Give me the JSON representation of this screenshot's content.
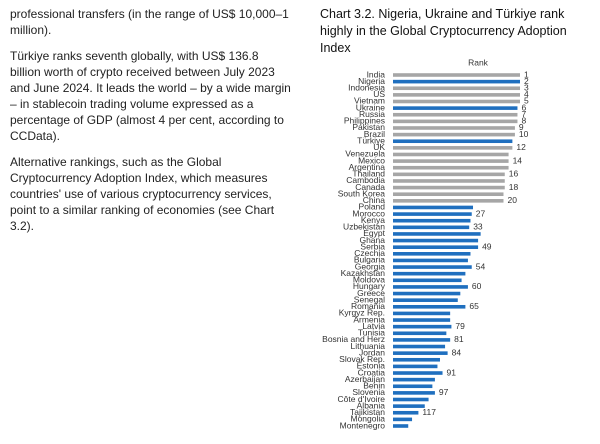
{
  "paragraphs": [
    "professional transfers (in the range of US$ 10,000–1 million).",
    "Türkiye ranks seventh globally, with US$ 136.8 billion worth of crypto received between July 2023 and June 2024. It leads the world – by a wide margin – in stablecoin trading volume expressed as a percentage of GDP (almost 4 per cent, according to CCData).",
    "Alternative rankings, such as the Global Cryptocurrency Adoption Index, which measures countries' use of various cryptocurrency services, point to a similar ranking of economies (see Chart 3.2)."
  ],
  "chart_data": {
    "type": "bar",
    "orientation": "horizontal",
    "title": "Chart 3.2. Nigeria, Ukraine and Türkiye rank highly in the Global Cryptocurrency Adoption Index",
    "x_label": "Rank",
    "categories": [
      "India",
      "Nigeria",
      "Indonesia",
      "US",
      "Vietnam",
      "Ukraine",
      "Russia",
      "Philippines",
      "Pakistan",
      "Brazil",
      "Türkiye",
      "UK",
      "Venezuela",
      "Mexico",
      "Argentina",
      "Thailand",
      "Cambodia",
      "Canada",
      "South Korea",
      "China",
      "Poland",
      "Morocco",
      "Kenya",
      "Uzbekistan",
      "Egypt",
      "Ghana",
      "Serbia",
      "Czechia",
      "Bulgaria",
      "Georgia",
      "Kazakhstan",
      "Moldova",
      "Hungary",
      "Greece",
      "Senegal",
      "Romania",
      "Kyrgyz Rep.",
      "Armenia",
      "Latvia",
      "Tunisia",
      "Bosnia and Herz",
      "Lithuania",
      "Jordan",
      "Slovak Rep.",
      "Estonia",
      "Croatia",
      "Azerbaijan",
      "Benin",
      "Slovenia",
      "Côte d'Ivoire",
      "Albania",
      "Tajikistan",
      "Mongolia",
      "Montenegro"
    ],
    "values": [
      1.0,
      1.0,
      1.0,
      1.0,
      1.0,
      0.98,
      0.98,
      0.98,
      0.96,
      0.96,
      0.94,
      0.94,
      0.91,
      0.91,
      0.91,
      0.88,
      0.88,
      0.88,
      0.87,
      0.87,
      0.63,
      0.62,
      0.61,
      0.6,
      0.69,
      0.67,
      0.67,
      0.61,
      0.59,
      0.62,
      0.57,
      0.54,
      0.59,
      0.53,
      0.51,
      0.57,
      0.45,
      0.45,
      0.46,
      0.42,
      0.45,
      0.41,
      0.43,
      0.37,
      0.35,
      0.39,
      0.33,
      0.31,
      0.33,
      0.28,
      0.25,
      0.2,
      0.15,
      0.12
    ],
    "rank_labels": [
      1,
      2,
      3,
      4,
      5,
      6,
      7,
      8,
      9,
      10,
      null,
      12,
      null,
      14,
      null,
      16,
      null,
      18,
      null,
      20,
      null,
      27,
      null,
      33,
      null,
      null,
      49,
      null,
      null,
      54,
      null,
      null,
      60,
      null,
      null,
      65,
      null,
      null,
      79,
      null,
      81,
      null,
      84,
      null,
      null,
      91,
      null,
      null,
      97,
      null,
      null,
      117,
      null,
      null
    ],
    "colors": [
      "#a6a6a6",
      "#1f6fbf",
      "#a6a6a6",
      "#a6a6a6",
      "#a6a6a6",
      "#1f6fbf",
      "#a6a6a6",
      "#a6a6a6",
      "#a6a6a6",
      "#a6a6a6",
      "#1f6fbf",
      "#a6a6a6",
      "#a6a6a6",
      "#a6a6a6",
      "#a6a6a6",
      "#a6a6a6",
      "#a6a6a6",
      "#a6a6a6",
      "#a6a6a6",
      "#a6a6a6",
      "#1f6fbf",
      "#1f6fbf",
      "#1f6fbf",
      "#1f6fbf",
      "#1f6fbf",
      "#1f6fbf",
      "#1f6fbf",
      "#1f6fbf",
      "#1f6fbf",
      "#1f6fbf",
      "#1f6fbf",
      "#1f6fbf",
      "#1f6fbf",
      "#1f6fbf",
      "#1f6fbf",
      "#1f6fbf",
      "#1f6fbf",
      "#1f6fbf",
      "#1f6fbf",
      "#1f6fbf",
      "#1f6fbf",
      "#1f6fbf",
      "#1f6fbf",
      "#1f6fbf",
      "#1f6fbf",
      "#1f6fbf",
      "#1f6fbf",
      "#1f6fbf",
      "#1f6fbf",
      "#1f6fbf",
      "#1f6fbf",
      "#1f6fbf",
      "#1f6fbf",
      "#1f6fbf"
    ],
    "xlim": [
      0,
      1
    ]
  }
}
